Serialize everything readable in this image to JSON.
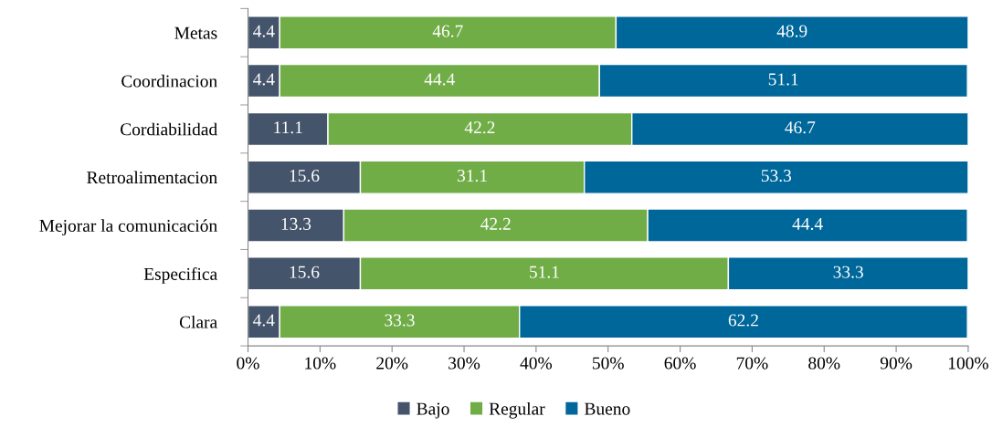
{
  "chart_data": {
    "type": "bar",
    "orientation": "horizontal",
    "stacked": true,
    "categories": [
      "Metas",
      "Coordinacion",
      "Cordiabilidad",
      "Retroalimentacion",
      "Mejorar la comunicación",
      "Especifica",
      "Clara"
    ],
    "series": [
      {
        "name": "Bajo",
        "color": "#44546a",
        "values": [
          4.4,
          4.4,
          11.1,
          15.6,
          13.3,
          15.6,
          4.4
        ]
      },
      {
        "name": "Regular",
        "color": "#70ad47",
        "values": [
          46.7,
          44.4,
          42.2,
          31.1,
          42.2,
          51.1,
          33.3
        ]
      },
      {
        "name": "Bueno",
        "color": "#00679a",
        "values": [
          48.9,
          51.1,
          46.7,
          53.3,
          44.4,
          33.3,
          62.2
        ]
      }
    ],
    "xlim": [
      0,
      100
    ],
    "xticks": [
      {
        "value": 0,
        "label": "0%"
      },
      {
        "value": 10,
        "label": "10%"
      },
      {
        "value": 20,
        "label": "20%"
      },
      {
        "value": 30,
        "label": "30%"
      },
      {
        "value": 40,
        "label": "40%"
      },
      {
        "value": 50,
        "label": "50%"
      },
      {
        "value": 60,
        "label": "60%"
      },
      {
        "value": 70,
        "label": "70%"
      },
      {
        "value": 80,
        "label": "80%"
      },
      {
        "value": 90,
        "label": "90%"
      },
      {
        "value": 100,
        "label": "100%"
      }
    ],
    "data_labels": true,
    "legend": "bottom",
    "grid": false
  }
}
